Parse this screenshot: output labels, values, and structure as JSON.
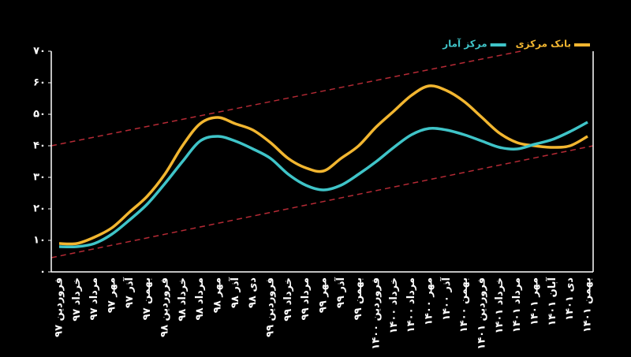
{
  "chart_data": {
    "type": "line",
    "categories": [
      "فروردین ۹۷",
      "خرداد ۹۷",
      "مرداد ۹۷",
      "مهر ۹۷",
      "آذر ۹۷",
      "بهمن ۹۷",
      "فروردین ۹۸",
      "خرداد ۹۸",
      "مرداد ۹۸",
      "مهر ۹۸",
      "آذر ۹۸",
      "دی ۹۸",
      "فروردین ۹۹",
      "خرداد ۹۹",
      "مرداد ۹۹",
      "مهر ۹۹",
      "آذر ۹۹",
      "بهمن ۹۹",
      "فروردین ۱۴۰۰",
      "خرداد ۱۴۰۰",
      "مرداد ۱۴۰۰",
      "مهر ۱۴۰۰",
      "آذر ۱۴۰۰",
      "بهمن ۱۴۰۰",
      "فروردین ۱۴۰۱",
      "خرداد ۱۴۰۱",
      "مرداد ۱۴۰۱",
      "مهر ۱۴۰۱",
      "آبان ۱۴۰۱",
      "دی ۱۴۰۱",
      "بهمن ۱۴۰۱"
    ],
    "series": [
      {
        "name": "بانک مرکزی",
        "color": "#f2b630",
        "values": [
          9,
          9,
          11,
          14,
          19,
          24,
          31,
          40,
          47,
          49,
          47,
          45,
          41,
          36,
          33,
          32,
          36,
          40,
          46,
          51,
          56,
          59,
          57.5,
          54,
          49,
          44,
          41,
          40,
          39.5,
          40,
          43
        ]
      },
      {
        "name": "مرکز آمار",
        "color": "#3fc4c8",
        "values": [
          8,
          8,
          9,
          12,
          16.5,
          21.5,
          28,
          35,
          41.5,
          43,
          41.5,
          39,
          36,
          31,
          27.5,
          26,
          27.5,
          31,
          35,
          39.5,
          43.5,
          45.5,
          45,
          43.5,
          41.5,
          39.5,
          39,
          40.5,
          42,
          44.5,
          47.5
        ]
      }
    ],
    "ylim": [
      0,
      70
    ],
    "yticks": [
      {
        "value": 0,
        "label": "۰"
      },
      {
        "value": 10,
        "label": "۱۰"
      },
      {
        "value": 20,
        "label": "۲۰"
      },
      {
        "value": 30,
        "label": "۳۰"
      },
      {
        "value": 40,
        "label": "۴۰"
      },
      {
        "value": 50,
        "label": "۵۰"
      },
      {
        "value": 60,
        "label": "۶۰"
      },
      {
        "value": 70,
        "label": "۷۰"
      }
    ],
    "legend": "top-right"
  }
}
